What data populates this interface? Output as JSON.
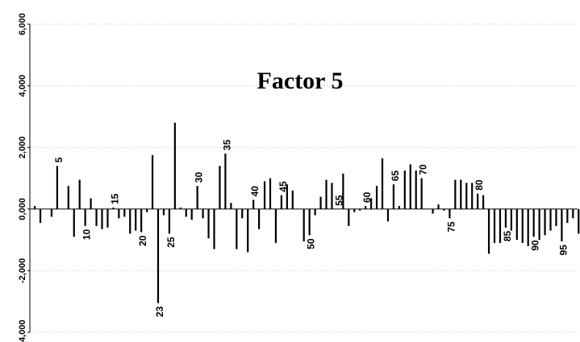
{
  "chart_data": {
    "type": "bar",
    "title": "Factor 5",
    "xlabel": "",
    "ylabel": "",
    "ylim": [
      -4,
      6
    ],
    "yticks": [
      6,
      4,
      2,
      0,
      -2,
      -4
    ],
    "ytick_labels": [
      "6,000",
      "4,000",
      "2,000",
      "0,000",
      "-2,000",
      "-4,000"
    ],
    "grid": true,
    "bar_color": "#000000",
    "grid_color": "#d9d9d9",
    "categories": [
      1,
      2,
      3,
      4,
      5,
      6,
      7,
      8,
      9,
      10,
      11,
      12,
      13,
      14,
      15,
      16,
      17,
      18,
      19,
      20,
      21,
      22,
      23,
      24,
      25,
      26,
      27,
      28,
      29,
      30,
      31,
      32,
      33,
      34,
      35,
      36,
      37,
      38,
      39,
      40,
      41,
      42,
      43,
      44,
      45,
      46,
      47,
      48,
      49,
      50,
      51,
      52,
      53,
      54,
      55,
      56,
      57,
      58,
      59,
      60,
      61,
      62,
      63,
      64,
      65,
      66,
      67,
      68,
      69,
      70,
      71,
      72,
      73,
      74,
      75,
      76,
      77,
      78,
      79,
      80,
      81,
      82,
      83,
      84,
      85,
      86,
      87,
      88,
      89,
      90,
      91,
      92,
      93,
      94,
      95,
      96,
      97,
      98
    ],
    "values": [
      0.1,
      -0.45,
      0.0,
      -0.25,
      1.4,
      0.0,
      0.75,
      -0.9,
      0.95,
      -0.55,
      0.35,
      -0.55,
      -0.65,
      -0.6,
      0.05,
      -0.3,
      -0.25,
      -0.8,
      -0.7,
      -0.75,
      -0.1,
      1.75,
      -3.05,
      -0.2,
      -0.8,
      2.8,
      0.05,
      -0.25,
      -0.35,
      0.75,
      -0.3,
      -0.95,
      -1.3,
      1.4,
      1.8,
      0.2,
      -1.3,
      -0.3,
      -1.4,
      0.3,
      -0.65,
      0.9,
      1.0,
      -1.1,
      0.45,
      0.8,
      0.6,
      0.0,
      -1.05,
      -0.85,
      -0.2,
      0.4,
      0.95,
      0.85,
      0.0,
      1.15,
      -0.55,
      -0.1,
      -0.05,
      0.1,
      0.35,
      0.75,
      1.65,
      -0.4,
      0.8,
      0.1,
      1.25,
      1.45,
      1.25,
      1.0,
      0.0,
      -0.15,
      0.15,
      -0.05,
      -0.3,
      0.95,
      0.95,
      0.85,
      0.85,
      0.5,
      0.45,
      -1.45,
      -1.1,
      -1.1,
      -0.6,
      -0.7,
      -1.0,
      -1.1,
      -1.2,
      -0.9,
      -1.0,
      -0.85,
      -0.7,
      -0.55,
      -1.05,
      -0.45,
      -0.3,
      -0.8
    ],
    "category_labels": [
      {
        "cat": 5,
        "text": "5"
      },
      {
        "cat": 10,
        "text": "10"
      },
      {
        "cat": 15,
        "text": "15"
      },
      {
        "cat": 20,
        "text": "20"
      },
      {
        "cat": 23,
        "text": "23"
      },
      {
        "cat": 25,
        "text": "25"
      },
      {
        "cat": 30,
        "text": "30"
      },
      {
        "cat": 35,
        "text": "35"
      },
      {
        "cat": 40,
        "text": "40"
      },
      {
        "cat": 45,
        "text": "45"
      },
      {
        "cat": 50,
        "text": "50"
      },
      {
        "cat": 55,
        "text": "55"
      },
      {
        "cat": 60,
        "text": "60"
      },
      {
        "cat": 65,
        "text": "65"
      },
      {
        "cat": 70,
        "text": "70"
      },
      {
        "cat": 75,
        "text": "75"
      },
      {
        "cat": 80,
        "text": "80"
      },
      {
        "cat": 85,
        "text": "85"
      },
      {
        "cat": 90,
        "text": "90"
      },
      {
        "cat": 95,
        "text": "95"
      }
    ]
  }
}
